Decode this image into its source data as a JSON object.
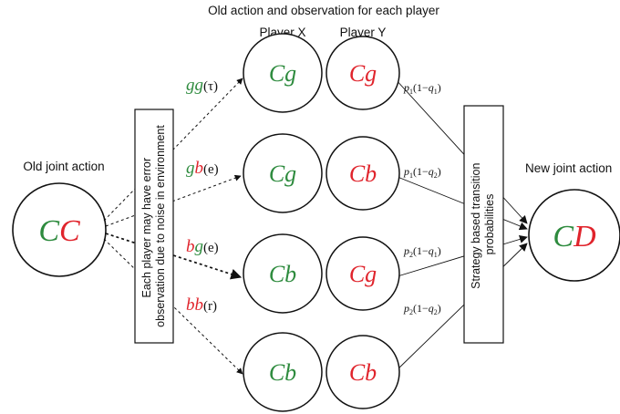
{
  "title": "Old action and observation for each player",
  "player_x_label": "Player X",
  "player_y_label": "Player Y",
  "old_joint_label": "Old joint action",
  "new_joint_label": "New joint action",
  "noise_box_text_1": "Each player may have error",
  "noise_box_text_2": "observation due to noise in environment",
  "strategy_box_text_1": "Strategy based transition",
  "strategy_box_text_2": "probabilities",
  "old_joint": {
    "a": "C",
    "b": "C"
  },
  "new_joint": {
    "a": "C",
    "b": "D"
  },
  "rows": [
    {
      "obs_a": "g",
      "obs_b": "g",
      "obs_tag": "(τ)",
      "x_action": "C",
      "x_obs": "g",
      "y_action": "C",
      "y_obs": "g",
      "prob_p": "p",
      "prob_p_sub": "1",
      "prob_mid": "(1−",
      "prob_q": "q",
      "prob_q_sub": "1",
      "prob_end": ")"
    },
    {
      "obs_a": "g",
      "obs_b": "b",
      "obs_tag": "(e)",
      "x_action": "C",
      "x_obs": "g",
      "y_action": "C",
      "y_obs": "b",
      "prob_p": "p",
      "prob_p_sub": "1",
      "prob_mid": "(1−",
      "prob_q": "q",
      "prob_q_sub": "2",
      "prob_end": ")"
    },
    {
      "obs_a": "b",
      "obs_b": "g",
      "obs_tag": "(e)",
      "x_action": "C",
      "x_obs": "b",
      "y_action": "C",
      "y_obs": "g",
      "prob_p": "p",
      "prob_p_sub": "2",
      "prob_mid": "(1−",
      "prob_q": "q",
      "prob_q_sub": "1",
      "prob_end": ")"
    },
    {
      "obs_a": "b",
      "obs_b": "b",
      "obs_tag": "(r)",
      "x_action": "C",
      "x_obs": "b",
      "y_action": "C",
      "y_obs": "b",
      "prob_p": "p",
      "prob_p_sub": "2",
      "prob_mid": "(1−",
      "prob_q": "q",
      "prob_q_sub": "2",
      "prob_end": ")"
    }
  ],
  "colors": {
    "green": "#2e8b3e",
    "red": "#e0242c",
    "ink": "#111111"
  }
}
